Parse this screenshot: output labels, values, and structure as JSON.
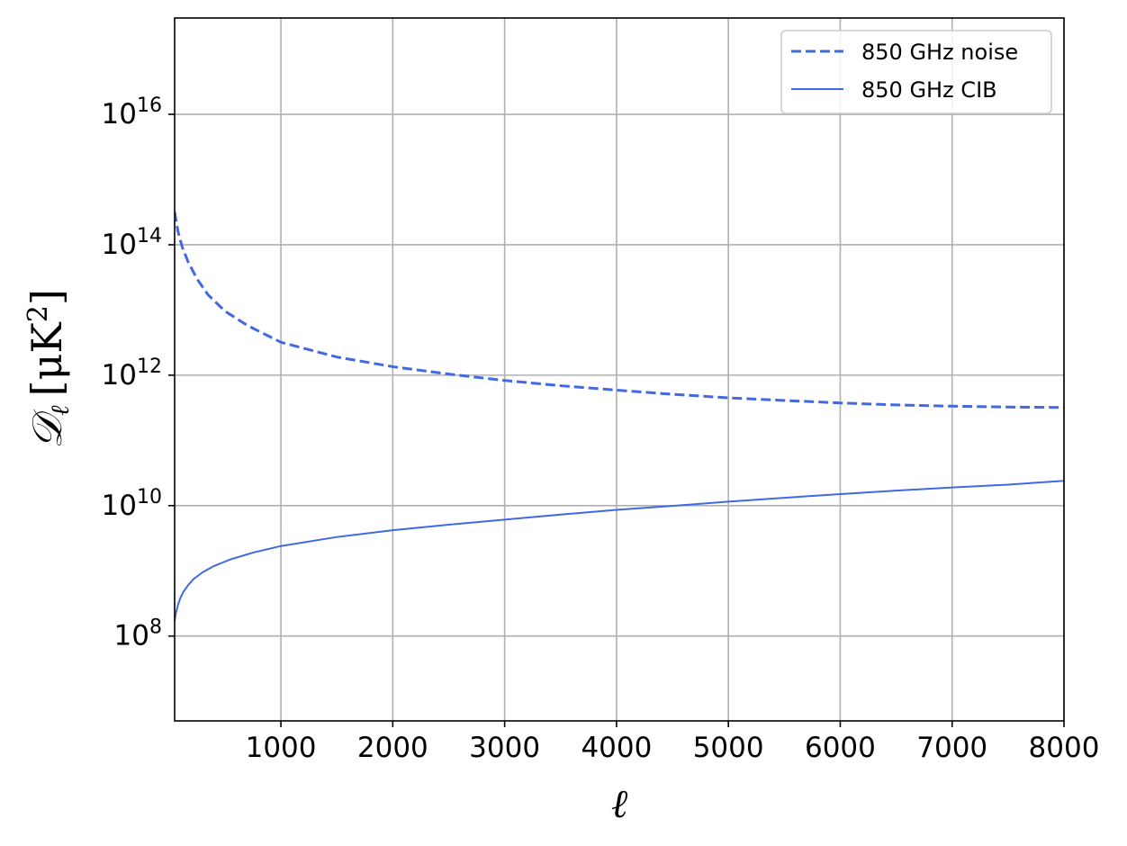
{
  "chart_data": {
    "type": "line",
    "xlabel": "ℓ",
    "ylabel": "𝒟ℓ [μK²]",
    "ylabel_parts": {
      "symbol": "𝒟",
      "subscript": "ℓ",
      "unit": "[μK",
      "unit_sup": "2",
      "unit_close": "]"
    },
    "xlim": [
      50,
      8000
    ],
    "ylim": [
      5000000.0,
      3e+17
    ],
    "yscale": "log",
    "grid": true,
    "legend_position": "top-right",
    "x_ticks": [
      1000,
      2000,
      3000,
      4000,
      5000,
      6000,
      7000,
      8000
    ],
    "x_tick_labels": [
      "1000",
      "2000",
      "3000",
      "4000",
      "5000",
      "6000",
      "7000",
      "8000"
    ],
    "y_ticks": [
      {
        "value": 100000000.0,
        "base": "10",
        "exp": "8"
      },
      {
        "value": 10000000000.0,
        "base": "10",
        "exp": "10"
      },
      {
        "value": 1000000000000.0,
        "base": "10",
        "exp": "12"
      },
      {
        "value": 100000000000000.0,
        "base": "10",
        "exp": "14"
      },
      {
        "value": 1e+16,
        "base": "10",
        "exp": "16"
      }
    ],
    "series": [
      {
        "name": "850 GHz noise",
        "style": "dashed",
        "color": "#4169e1",
        "x": [
          50,
          80,
          120,
          170,
          250,
          350,
          500,
          700,
          1000,
          1500,
          2000,
          2500,
          3000,
          3500,
          4000,
          4500,
          5000,
          5500,
          6000,
          6500,
          7000,
          7500,
          8000
        ],
        "y": [
          320000000000000.0,
          160000000000000.0,
          90000000000000.0,
          55000000000000.0,
          30000000000000.0,
          17000000000000.0,
          9600000000000.0,
          5800000000000.0,
          3200000000000.0,
          1900000000000.0,
          1350000000000.0,
          1040000000000.0,
          830000000000.0,
          690000000000.0,
          590000000000.0,
          510000000000.0,
          450000000000.0,
          410000000000.0,
          375000000000.0,
          350000000000.0,
          335000000000.0,
          325000000000.0,
          320000000000.0
        ]
      },
      {
        "name": "850 GHz CIB",
        "style": "solid",
        "color": "#4169e1",
        "x": [
          50,
          60,
          80,
          100,
          130,
          170,
          220,
          300,
          400,
          550,
          750,
          1000,
          1500,
          2000,
          2500,
          3000,
          3500,
          4000,
          4500,
          5000,
          5500,
          6000,
          6500,
          7000,
          7500,
          8000
        ],
        "y": [
          170000000.0,
          220000000.0,
          300000000.0,
          380000000.0,
          480000000.0,
          600000000.0,
          750000000.0,
          950000000.0,
          1180000000.0,
          1500000000.0,
          1900000000.0,
          2400000000.0,
          3300000000.0,
          4200000000.0,
          5100000000.0,
          6100000000.0,
          7300000000.0,
          8600000000.0,
          9900000000.0,
          11500000000.0,
          13200000000.0,
          15000000000.0,
          17000000000.0,
          19000000000.0,
          21000000000.0,
          24000000000.0
        ]
      }
    ]
  }
}
